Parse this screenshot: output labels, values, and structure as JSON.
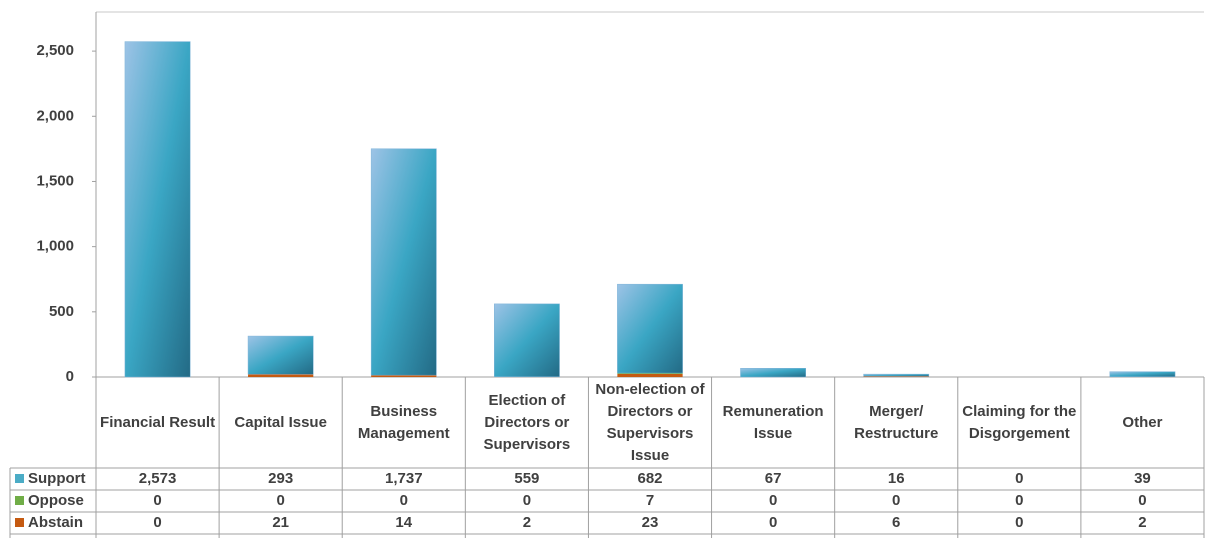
{
  "chart_data": {
    "type": "bar",
    "stacked": true,
    "categories": [
      "Financial Result",
      "Capital Issue",
      "Business Management",
      "Election of Directors or Supervisors",
      "Non-election of Directors or Supervisors Issue",
      "Remuneration Issue",
      "Merger/ Restructure",
      "Claiming for the Disgorgement",
      "Other"
    ],
    "series": [
      {
        "name": "Support",
        "color": "#4bacc6",
        "values": [
          2573,
          293,
          1737,
          559,
          682,
          67,
          16,
          0,
          39
        ],
        "value_labels": [
          "2,573",
          "293",
          "1,737",
          "559",
          "682",
          "67",
          "16",
          "0",
          "39"
        ]
      },
      {
        "name": "Oppose",
        "color": "#70ad47",
        "values": [
          0,
          0,
          0,
          0,
          7,
          0,
          0,
          0,
          0
        ]
      },
      {
        "name": "Abstain",
        "color": "#c55a11",
        "values": [
          0,
          21,
          14,
          2,
          23,
          0,
          6,
          0,
          2
        ]
      }
    ],
    "ylim": [
      0,
      2800
    ],
    "yticks": [
      0,
      500,
      {
        "value": 1000,
        "label": "1,000"
      },
      {
        "value": 1500,
        "label": "1,500"
      },
      {
        "value": 2000,
        "label": "2,000"
      },
      {
        "value": 2500,
        "label": "2,500"
      }
    ]
  }
}
